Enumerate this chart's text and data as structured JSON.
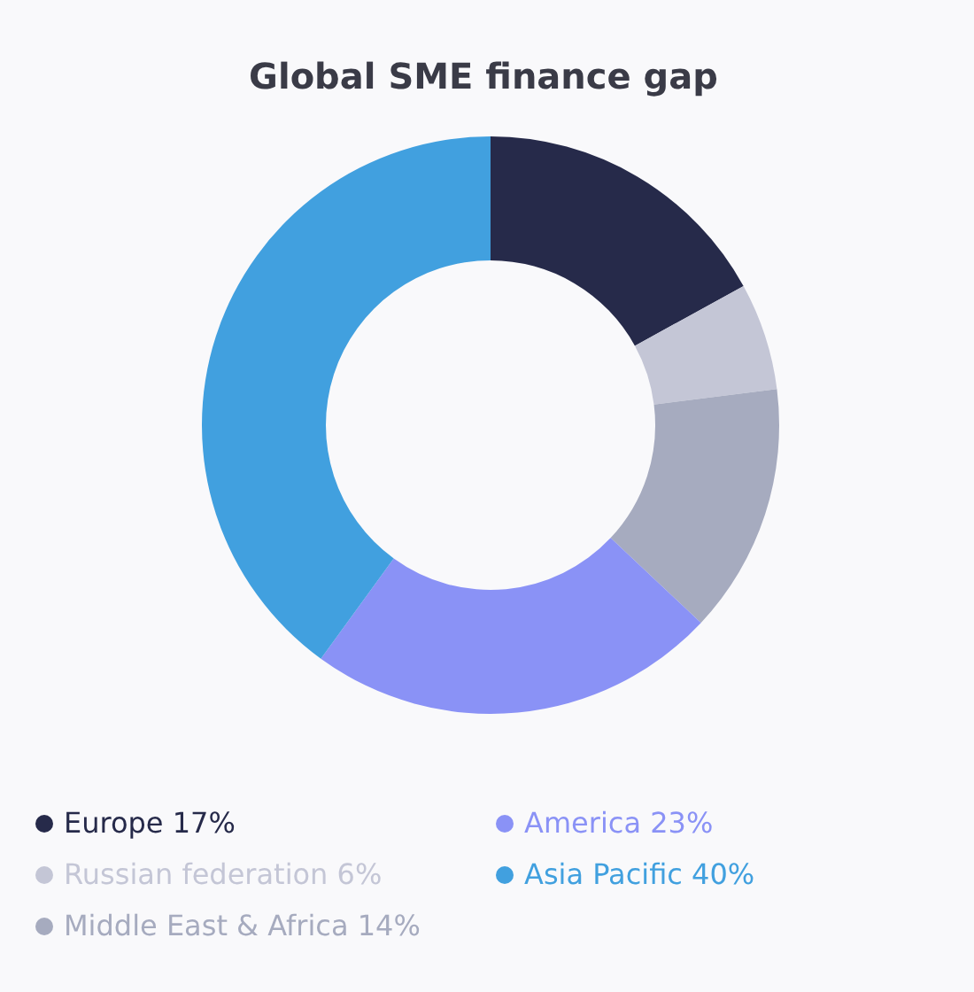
{
  "chart_data": {
    "type": "donut",
    "title": "Global SME finance gap",
    "categories": [
      "Europe",
      "Russian federation",
      "Middle East & Africa",
      "America",
      "Asia Pacific"
    ],
    "values": [
      17,
      6,
      14,
      23,
      40
    ],
    "value_labels": [
      "17%",
      "6%",
      "14%",
      "23%",
      "40%"
    ],
    "colors": [
      "#262a4a",
      "#c4c6d6",
      "#a6abbf",
      "#8a92f6",
      "#41a0df"
    ],
    "legend": "bottom"
  }
}
